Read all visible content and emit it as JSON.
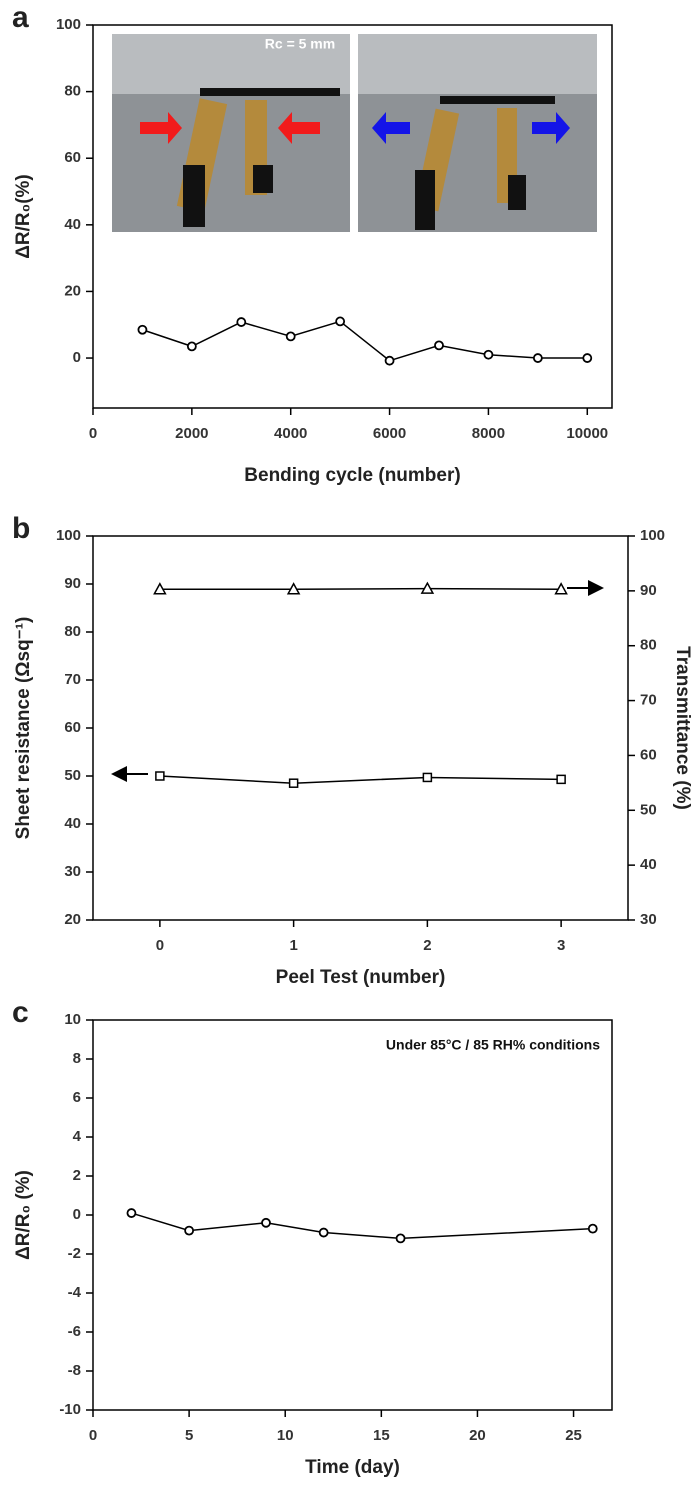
{
  "chart_data": [
    {
      "type": "line",
      "panel_label": "a",
      "x_label": "Bending cycle (number)",
      "y_label": "ΔR/R₀(%)",
      "annotation": "Rc = 5 mm",
      "x": [
        1000,
        2000,
        3000,
        4000,
        5000,
        6000,
        7000,
        8000,
        9000,
        10000
      ],
      "values": [
        8.5,
        3.5,
        10.8,
        6.5,
        11,
        -0.8,
        3.8,
        1,
        0,
        0
      ],
      "marker": "circle",
      "color": "#000000",
      "xlim": [
        0,
        10500
      ],
      "xticks": [
        0,
        2000,
        4000,
        6000,
        8000,
        10000
      ],
      "ylim": [
        -15,
        100
      ],
      "yticks": [
        0,
        20,
        40,
        60,
        80,
        100
      ]
    },
    {
      "type": "line",
      "panel_label": "b",
      "x_label": "Peel Test (number)",
      "y_label": "Sheet resistance (Ωsq⁻¹)",
      "y2_label": "Transmittance (%)",
      "x": [
        0,
        1,
        2,
        3
      ],
      "series": [
        {
          "values": [
            50,
            48.5,
            49.7,
            49.3
          ],
          "marker": "square",
          "color": "#000000"
        },
        {
          "values": [
            90.3,
            90.3,
            90.4,
            90.3
          ],
          "marker": "triangle",
          "color": "#000000",
          "axis": "y2"
        }
      ],
      "xlim": [
        -0.5,
        3.5
      ],
      "xticks": [
        0,
        1,
        2,
        3
      ],
      "ylim": [
        20,
        100
      ],
      "yticks": [
        20,
        30,
        40,
        50,
        60,
        70,
        80,
        90,
        100
      ],
      "y2lim": [
        30,
        100
      ],
      "y2ticks": [
        30,
        40,
        50,
        60,
        70,
        80,
        90,
        100
      ]
    },
    {
      "type": "line",
      "panel_label": "c",
      "x_label": "Time (day)",
      "y_label": "ΔR/R₀ (%)",
      "annotation": "Under 85°C / 85 RH% conditions",
      "x": [
        2,
        5,
        9,
        12,
        16,
        26
      ],
      "values": [
        0.1,
        -0.8,
        -0.4,
        -0.9,
        -1.2,
        -0.7
      ],
      "marker": "circle",
      "color": "#000000",
      "xlim": [
        0,
        27
      ],
      "xticks": [
        0,
        5,
        10,
        15,
        20,
        25
      ],
      "ylim": [
        -10,
        10
      ],
      "yticks": [
        -10,
        -8,
        -6,
        -4,
        -2,
        0,
        2,
        4,
        6,
        8,
        10
      ]
    }
  ]
}
